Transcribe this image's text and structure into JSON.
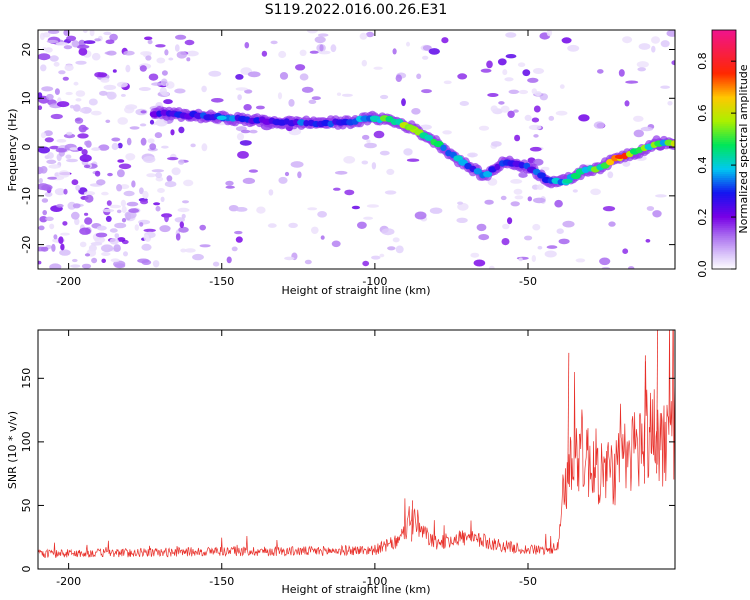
{
  "figure": {
    "title": "S119.2022.016.00.26.E31"
  },
  "chart_data": [
    {
      "type": "heatmap",
      "title": "",
      "xlabel": "Height of straight line (km)",
      "ylabel": "Frequency (Hz)",
      "xlim": [
        -210,
        -2
      ],
      "ylim": [
        -25,
        24
      ],
      "xticks": [
        -200,
        -150,
        -100,
        -50
      ],
      "yticks": [
        -20,
        -10,
        0,
        10,
        20
      ],
      "colorbar": {
        "label": "Normalized spectral amplitude",
        "range": [
          0,
          0.92
        ],
        "ticks": [
          0.0,
          0.2,
          0.4,
          0.6,
          0.8
        ],
        "colormap": "white-purple-blue-cyan-green-yellow-red-magenta"
      },
      "ridge_x": [
        -172,
        -160,
        -150,
        -140,
        -130,
        -120,
        -110,
        -100,
        -95,
        -88,
        -80,
        -72,
        -64,
        -58,
        -50,
        -43,
        -38,
        -32,
        -26,
        -20,
        -14,
        -8,
        -2
      ],
      "ridge_y": [
        7,
        6.5,
        6,
        5.5,
        5,
        5,
        5,
        6,
        5.5,
        4,
        1,
        -3,
        -6,
        -3,
        -4,
        -7,
        -7,
        -5,
        -4,
        -2,
        -1,
        1,
        0.5
      ],
      "ridge_intensity": [
        0.25,
        0.3,
        0.35,
        0.3,
        0.3,
        0.35,
        0.35,
        0.4,
        0.55,
        0.55,
        0.45,
        0.4,
        0.35,
        0.3,
        0.3,
        0.35,
        0.4,
        0.45,
        0.55,
        0.8,
        0.6,
        0.5,
        0.55
      ]
    },
    {
      "type": "line",
      "title": "",
      "xlabel": "Height of straight line (km)",
      "ylabel": "SNR (10 * v/v)",
      "xlim": [
        -210,
        -2
      ],
      "ylim": [
        0,
        188
      ],
      "xticks": [
        -200,
        -150,
        -100,
        -50
      ],
      "yticks": [
        0,
        50,
        100,
        150
      ],
      "color": "#e8302a",
      "envelope_x": [
        -210,
        -170,
        -150,
        -120,
        -100,
        -92,
        -88,
        -85,
        -80,
        -72,
        -65,
        -58,
        -50,
        -42,
        -40,
        -38,
        -35,
        -30,
        -25,
        -20,
        -15,
        -10,
        -6,
        -2
      ],
      "envelope_y": [
        12,
        13,
        14,
        14,
        15,
        22,
        42,
        30,
        20,
        25,
        22,
        18,
        15,
        15,
        20,
        60,
        100,
        85,
        75,
        80,
        95,
        110,
        100,
        112
      ],
      "peaks": [
        {
          "x": -37,
          "y": 170
        },
        {
          "x": -8,
          "y": 188
        },
        {
          "x": -12,
          "y": 168
        },
        {
          "x": -88,
          "y": 54
        }
      ]
    }
  ]
}
